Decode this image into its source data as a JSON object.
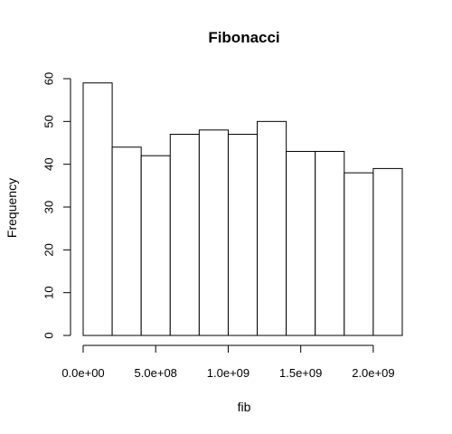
{
  "chart_data": {
    "type": "bar",
    "title": "Fibonacci",
    "xlabel": "fib",
    "ylabel": "Frequency",
    "bins": [
      [
        0,
        200000000
      ],
      [
        200000000,
        400000000
      ],
      [
        400000000,
        600000000
      ],
      [
        600000000,
        800000000
      ],
      [
        800000000,
        1000000000
      ],
      [
        1000000000,
        1200000000
      ],
      [
        1200000000,
        1400000000
      ],
      [
        1400000000,
        1600000000
      ],
      [
        1600000000,
        1800000000
      ],
      [
        1800000000,
        2000000000
      ],
      [
        2000000000,
        2200000000
      ]
    ],
    "values": [
      59,
      44,
      42,
      47,
      48,
      47,
      50,
      43,
      43,
      38,
      39
    ],
    "xlim": [
      0,
      2200000000
    ],
    "ylim": [
      0,
      60
    ],
    "x_ticks": [
      0,
      500000000,
      1000000000,
      1500000000,
      2000000000
    ],
    "x_tick_labels": [
      "0.0e+00",
      "5.0e+08",
      "1.0e+09",
      "1.5e+09",
      "2.0e+09"
    ],
    "y_ticks": [
      0,
      10,
      20,
      30,
      40,
      50,
      60
    ],
    "y_tick_labels": [
      "0",
      "10",
      "20",
      "30",
      "40",
      "50",
      "60"
    ],
    "grid": false,
    "bar_fill": "#ffffff",
    "bar_stroke": "#000000"
  }
}
